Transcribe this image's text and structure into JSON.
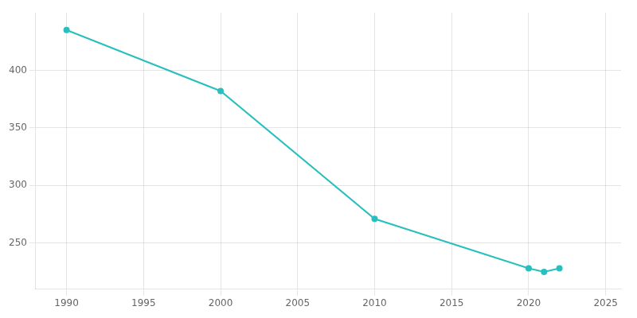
{
  "chart_data": {
    "type": "line",
    "x": [
      1990,
      2000,
      2010,
      2020,
      2021,
      2022
    ],
    "values": [
      435,
      382,
      271,
      228,
      225,
      228
    ],
    "color": "#2abfbf",
    "marker": "circle",
    "xlim": [
      1988,
      2026
    ],
    "ylim": [
      210,
      450
    ],
    "xticks": [
      1990,
      1995,
      2000,
      2005,
      2010,
      2015,
      2020,
      2025
    ],
    "yticks": [
      250,
      300,
      350,
      400
    ],
    "grid": true
  }
}
